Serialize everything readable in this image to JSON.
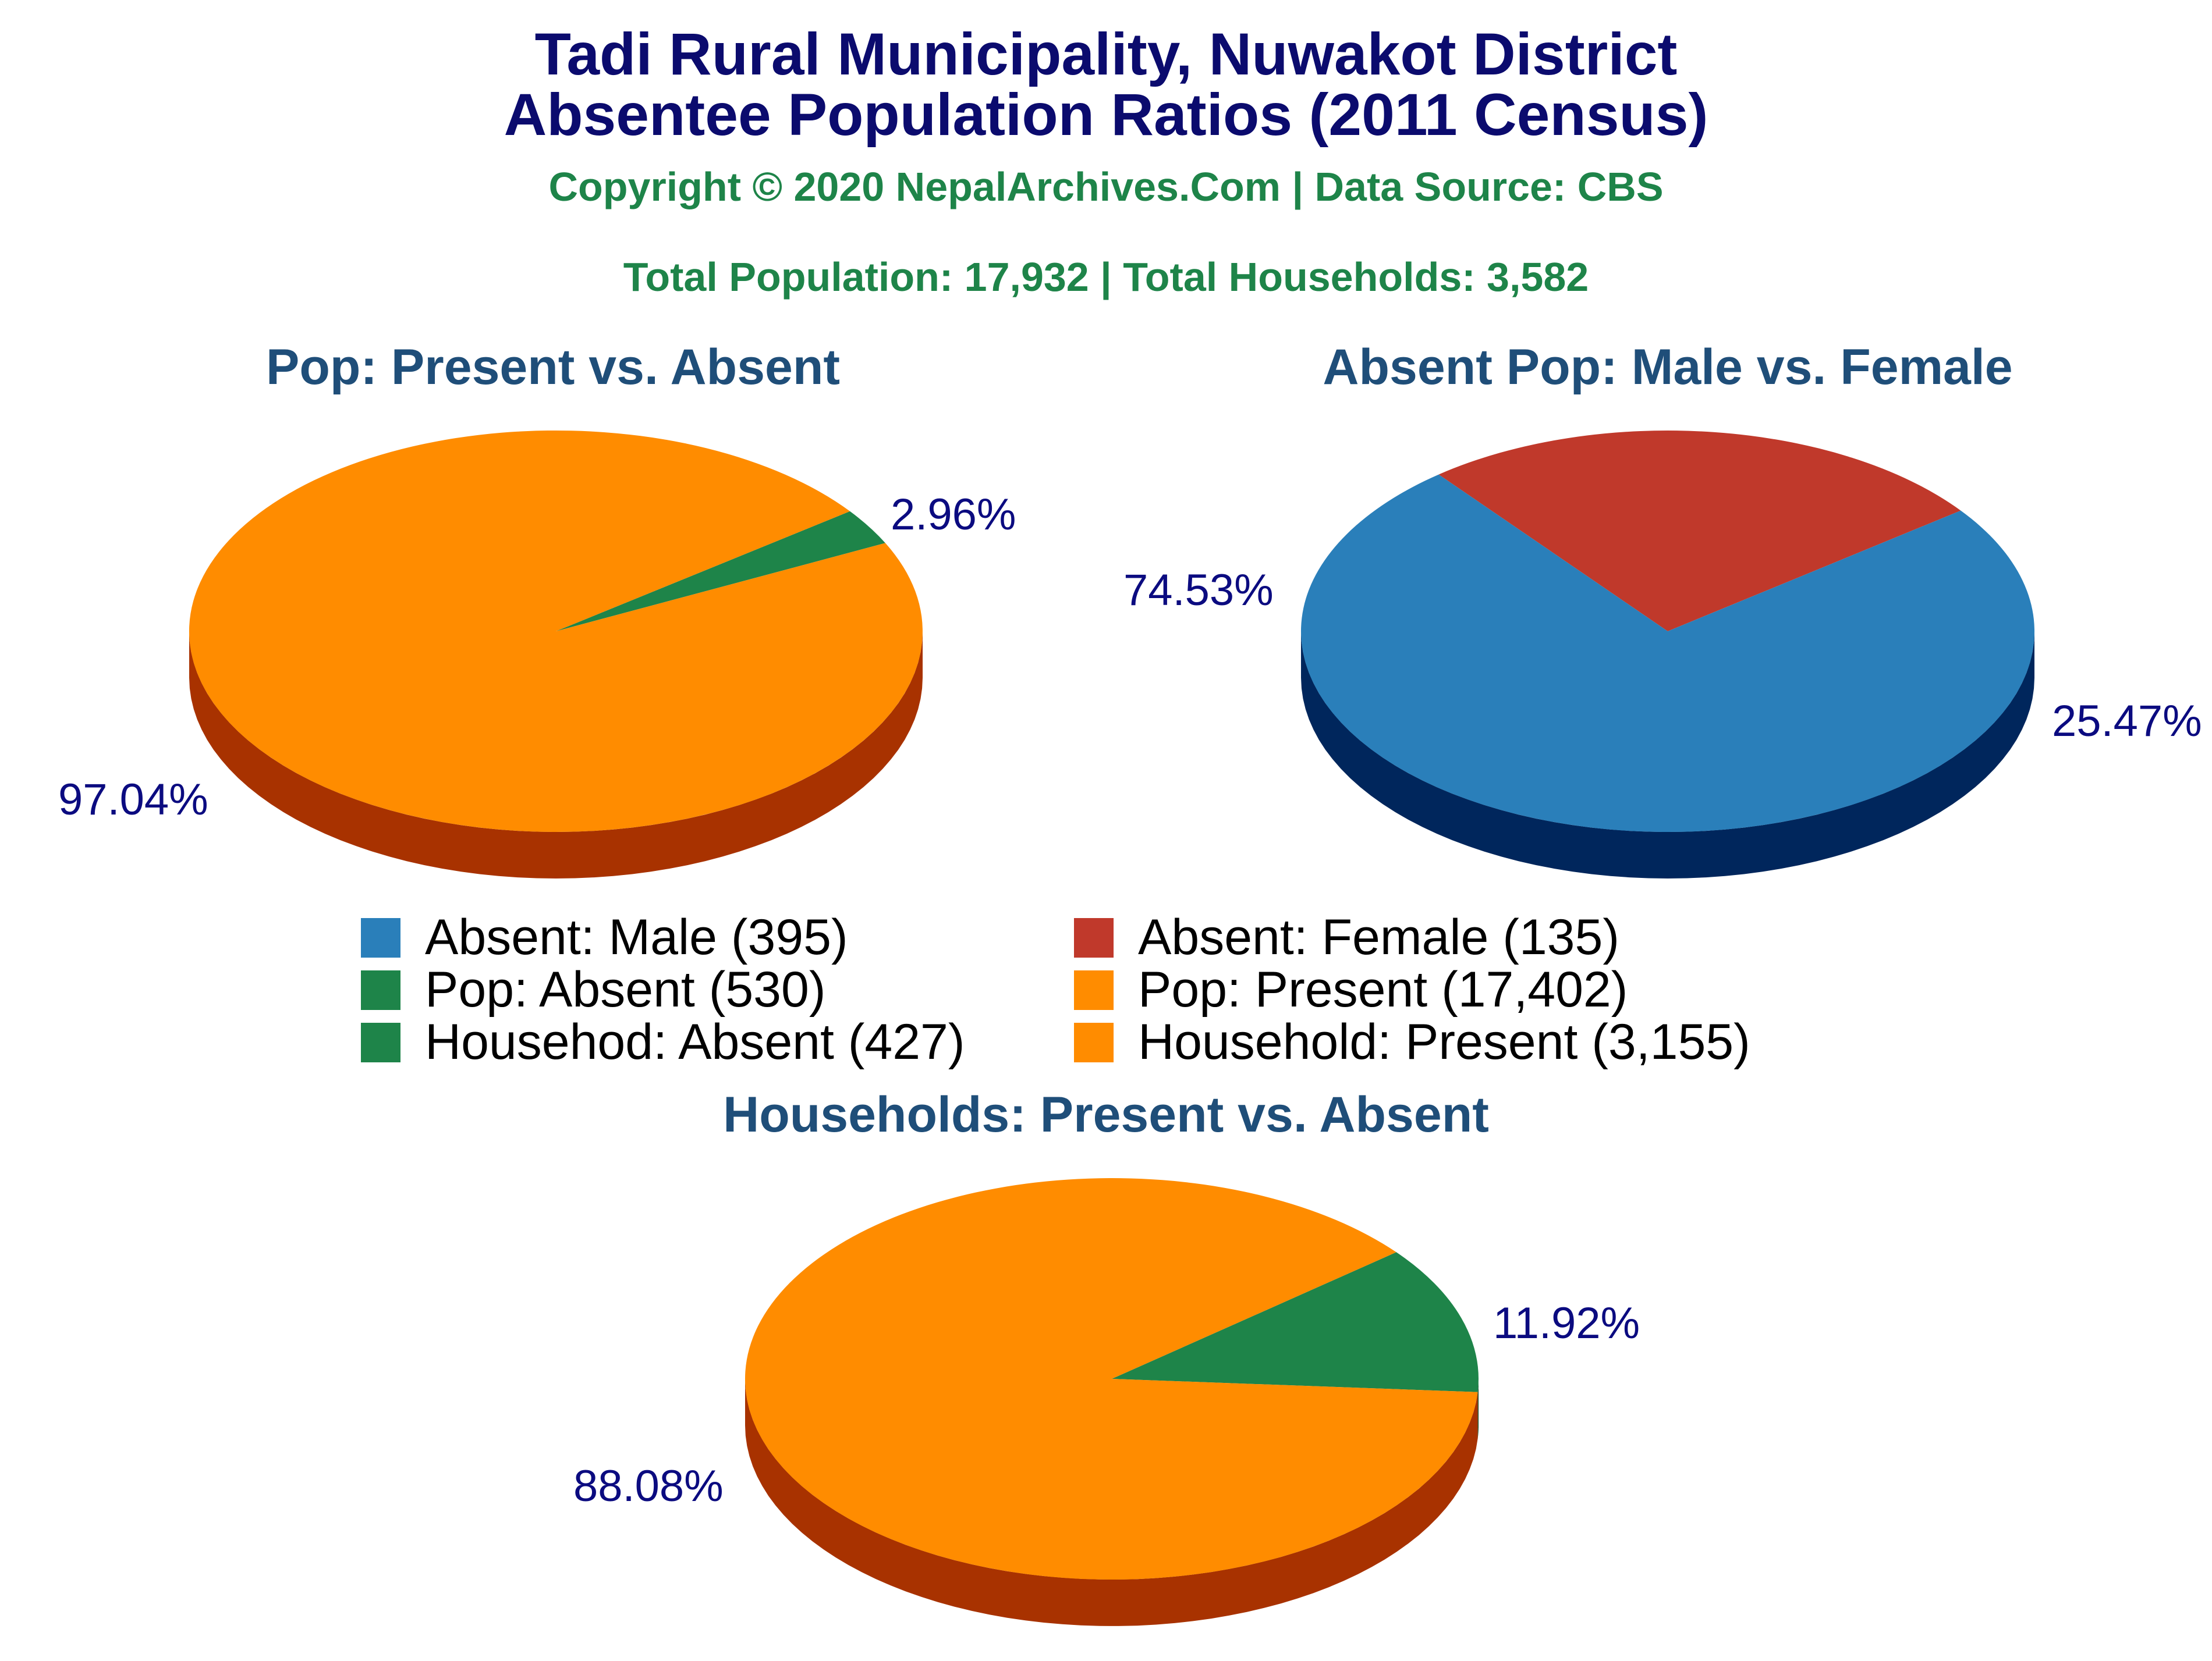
{
  "header": {
    "title_line1": "Tadi Rural Municipality, Nuwakot District",
    "title_line2": "Absentee Population Ratios (2011 Census)",
    "copyright": "Copyright © 2020 NepalArchives.Com | Data Source: CBS",
    "totals": "Total Population: 17,932 | Total Households: 3,582"
  },
  "colors": {
    "title": "#0b0b6e",
    "subtitle": "#1e8449",
    "pie_title": "#1f4e79",
    "pct_label": "#0b0b80",
    "orange": "#ff8c00",
    "orange_side": "#a83200",
    "green": "#1e8449",
    "green_side": "#0e4a26",
    "blue": "#2a7fba",
    "blue_side": "#00265c",
    "red": "#c0392b",
    "red_side": "#6b0000"
  },
  "chart_data": [
    {
      "type": "pie",
      "title": "Pop: Present vs. Absent",
      "slices": [
        {
          "label": "Pop: Absent (530)",
          "value": 530,
          "percent_label": "2.96%",
          "color": "#1e8449",
          "side_color": "#0e4a26"
        },
        {
          "label": "Pop: Present (17,402)",
          "value": 17402,
          "percent_label": "97.04%",
          "color": "#ff8c00",
          "side_color": "#a83200"
        }
      ]
    },
    {
      "type": "pie",
      "title": "Absent Pop: Male vs. Female",
      "slices": [
        {
          "label": "Absent: Female (135)",
          "value": 135,
          "percent_label": "25.47%",
          "color": "#c0392b",
          "side_color": "#6b0000"
        },
        {
          "label": "Absent: Male (395)",
          "value": 395,
          "percent_label": "74.53%",
          "color": "#2a7fba",
          "side_color": "#00265c"
        }
      ]
    },
    {
      "type": "pie",
      "title": "Households: Present vs. Absent",
      "slices": [
        {
          "label": "Househod: Absent (427)",
          "value": 427,
          "percent_label": "11.92%",
          "color": "#1e8449",
          "side_color": "#0e4a26"
        },
        {
          "label": "Household: Present (3,155)",
          "value": 3155,
          "percent_label": "88.08%",
          "color": "#ff8c00",
          "side_color": "#a83200"
        }
      ]
    }
  ],
  "legend": [
    {
      "label": "Absent: Male (395)",
      "color": "#2a7fba"
    },
    {
      "label": "Absent: Female (135)",
      "color": "#c0392b"
    },
    {
      "label": "Pop: Absent (530)",
      "color": "#1e8449"
    },
    {
      "label": "Pop: Present (17,402)",
      "color": "#ff8c00"
    },
    {
      "label": "Househod: Absent (427)",
      "color": "#1e8449"
    },
    {
      "label": "Household: Present (3,155)",
      "color": "#ff8c00"
    }
  ]
}
